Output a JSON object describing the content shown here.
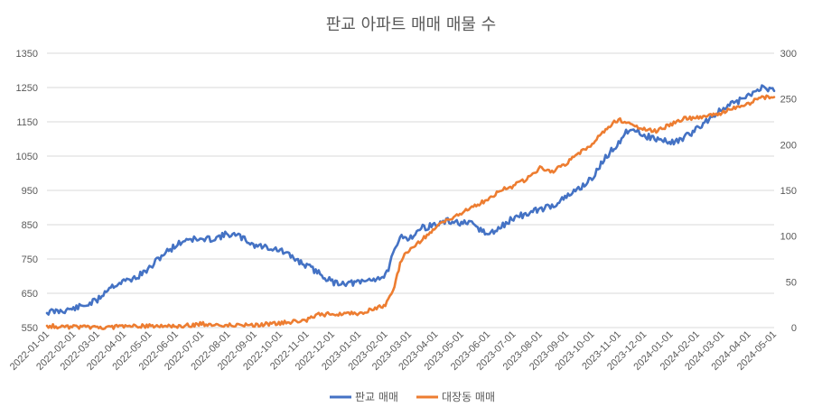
{
  "chart_data": {
    "type": "line",
    "title": "판교 아파트 매매 매물 수",
    "xlabel": "",
    "ylabel": "",
    "x_tick_labels": [
      "2022-01-01",
      "2022-02-01",
      "2022-03-01",
      "2022-04-01",
      "2022-05-01",
      "2022-06-01",
      "2022-07-01",
      "2022-08-01",
      "2022-09-01",
      "2022-10-01",
      "2022-11-01",
      "2022-12-01",
      "2023-01-01",
      "2023-02-01",
      "2023-03-01",
      "2023-04-01",
      "2023-05-01",
      "2023-06-01",
      "2023-07-01",
      "2023-08-01",
      "2023-09-01",
      "2023-10-01",
      "2023-11-01",
      "2023-12-01",
      "2024-01-01",
      "2024-02-01",
      "2024-03-01",
      "2024-04-01",
      "2024-05-01"
    ],
    "y_left": {
      "min": 550,
      "max": 1350,
      "ticks": [
        "1350",
        "1250",
        "1150",
        "1050",
        "950",
        "850",
        "750",
        "650",
        "550"
      ]
    },
    "y_right": {
      "min": 0,
      "max": 300,
      "ticks": [
        "300",
        "250",
        "200",
        "150",
        "100",
        "50",
        "0"
      ]
    },
    "grid": true,
    "legend_position": "bottom",
    "series": [
      {
        "name": "판교 매매",
        "axis": "left",
        "color": "#4472c4",
        "points": [
          [
            "2022-01-01",
            595
          ],
          [
            "2022-01-15",
            598
          ],
          [
            "2022-02-01",
            605
          ],
          [
            "2022-02-15",
            615
          ],
          [
            "2022-03-01",
            630
          ],
          [
            "2022-03-15",
            668
          ],
          [
            "2022-04-01",
            685
          ],
          [
            "2022-04-15",
            695
          ],
          [
            "2022-05-01",
            722
          ],
          [
            "2022-05-15",
            760
          ],
          [
            "2022-06-01",
            790
          ],
          [
            "2022-06-15",
            810
          ],
          [
            "2022-07-01",
            805
          ],
          [
            "2022-07-15",
            810
          ],
          [
            "2022-08-01",
            823
          ],
          [
            "2022-08-15",
            815
          ],
          [
            "2022-09-01",
            790
          ],
          [
            "2022-09-15",
            785
          ],
          [
            "2022-10-01",
            775
          ],
          [
            "2022-10-15",
            755
          ],
          [
            "2022-11-01",
            730
          ],
          [
            "2022-11-15",
            710
          ],
          [
            "2022-12-01",
            682
          ],
          [
            "2022-12-15",
            680
          ],
          [
            "2023-01-01",
            680
          ],
          [
            "2023-01-15",
            690
          ],
          [
            "2023-02-01",
            700
          ],
          [
            "2023-02-10",
            760
          ],
          [
            "2023-02-20",
            820
          ],
          [
            "2023-03-01",
            810
          ],
          [
            "2023-03-15",
            840
          ],
          [
            "2023-04-01",
            850
          ],
          [
            "2023-04-15",
            860
          ],
          [
            "2023-05-01",
            855
          ],
          [
            "2023-05-15",
            850
          ],
          [
            "2023-06-01",
            820
          ],
          [
            "2023-06-15",
            840
          ],
          [
            "2023-07-01",
            870
          ],
          [
            "2023-07-15",
            880
          ],
          [
            "2023-08-01",
            895
          ],
          [
            "2023-08-15",
            905
          ],
          [
            "2023-09-01",
            930
          ],
          [
            "2023-09-15",
            955
          ],
          [
            "2023-10-01",
            985
          ],
          [
            "2023-10-15",
            1040
          ],
          [
            "2023-11-01",
            1090
          ],
          [
            "2023-11-15",
            1135
          ],
          [
            "2023-12-01",
            1110
          ],
          [
            "2023-12-15",
            1100
          ],
          [
            "2024-01-01",
            1090
          ],
          [
            "2024-01-15",
            1100
          ],
          [
            "2024-02-01",
            1130
          ],
          [
            "2024-02-15",
            1160
          ],
          [
            "2024-03-01",
            1185
          ],
          [
            "2024-03-15",
            1205
          ],
          [
            "2024-04-01",
            1225
          ],
          [
            "2024-04-15",
            1250
          ],
          [
            "2024-05-01",
            1240
          ]
        ]
      },
      {
        "name": "대장동 매매",
        "axis": "right",
        "color": "#ed7d31",
        "points": [
          [
            "2022-01-01",
            2
          ],
          [
            "2022-01-15",
            1
          ],
          [
            "2022-02-01",
            1
          ],
          [
            "2022-03-01",
            0
          ],
          [
            "2022-04-01",
            1
          ],
          [
            "2022-05-01",
            2
          ],
          [
            "2022-06-01",
            1
          ],
          [
            "2022-07-01",
            4
          ],
          [
            "2022-08-01",
            3
          ],
          [
            "2022-09-01",
            3
          ],
          [
            "2022-10-01",
            5
          ],
          [
            "2022-11-01",
            8
          ],
          [
            "2022-11-15",
            14
          ],
          [
            "2022-12-01",
            15
          ],
          [
            "2022-12-15",
            15
          ],
          [
            "2023-01-01",
            16
          ],
          [
            "2023-01-15",
            19
          ],
          [
            "2023-02-01",
            24
          ],
          [
            "2023-02-10",
            40
          ],
          [
            "2023-02-20",
            75
          ],
          [
            "2023-03-01",
            85
          ],
          [
            "2023-03-15",
            95
          ],
          [
            "2023-04-01",
            110
          ],
          [
            "2023-04-15",
            118
          ],
          [
            "2023-05-01",
            125
          ],
          [
            "2023-05-15",
            132
          ],
          [
            "2023-06-01",
            140
          ],
          [
            "2023-06-15",
            150
          ],
          [
            "2023-07-01",
            155
          ],
          [
            "2023-07-15",
            162
          ],
          [
            "2023-08-01",
            175
          ],
          [
            "2023-08-15",
            170
          ],
          [
            "2023-09-01",
            180
          ],
          [
            "2023-09-15",
            190
          ],
          [
            "2023-10-01",
            200
          ],
          [
            "2023-10-15",
            215
          ],
          [
            "2023-11-01",
            228
          ],
          [
            "2023-11-15",
            222
          ],
          [
            "2023-12-01",
            217
          ],
          [
            "2023-12-15",
            215
          ],
          [
            "2024-01-01",
            222
          ],
          [
            "2024-01-15",
            228
          ],
          [
            "2024-02-01",
            230
          ],
          [
            "2024-02-15",
            232
          ],
          [
            "2024-03-01",
            235
          ],
          [
            "2024-03-15",
            240
          ],
          [
            "2024-04-01",
            245
          ],
          [
            "2024-04-15",
            252
          ],
          [
            "2024-05-01",
            252
          ]
        ]
      }
    ]
  }
}
